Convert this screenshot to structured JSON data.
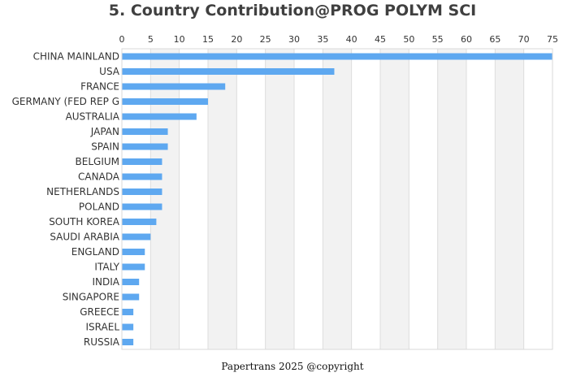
{
  "chart_data": {
    "type": "bar",
    "orientation": "horizontal",
    "title": "5. Country Contribution@PROG POLYM SCI",
    "xlabel": "",
    "ylabel": "",
    "xlim": [
      0,
      75
    ],
    "x_ticks": [
      0,
      5,
      10,
      15,
      20,
      25,
      30,
      35,
      40,
      45,
      50,
      55,
      60,
      65,
      70,
      75
    ],
    "x_axis_position": "top",
    "categories": [
      "CHINA MAINLAND",
      "USA",
      "FRANCE",
      "GERMANY (FED REP G",
      "AUSTRALIA",
      "JAPAN",
      "SPAIN",
      "BELGIUM",
      "CANADA",
      "NETHERLANDS",
      "POLAND",
      "SOUTH KOREA",
      "SAUDI ARABIA",
      "ENGLAND",
      "ITALY",
      "INDIA",
      "SINGAPORE",
      "GREECE",
      "ISRAEL",
      "RUSSIA"
    ],
    "values": [
      75,
      37,
      18,
      15,
      13,
      8,
      8,
      7,
      7,
      7,
      7,
      6,
      5,
      4,
      4,
      3,
      3,
      2,
      2,
      2
    ],
    "bar_color": "#5ea8f0",
    "band_color": "#f2f2f2",
    "grid_color": "#dddddd"
  },
  "footer": "Papertrans 2025 @copyright"
}
